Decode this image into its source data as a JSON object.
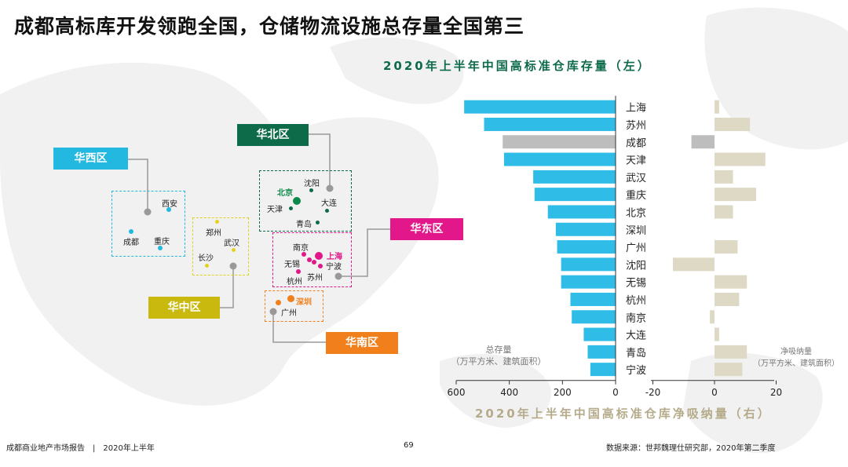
{
  "title": "成都高标库开发领跑全国，仓储物流设施总存量全国第三",
  "chart_titles": {
    "left": "2020年上半年中国高标准仓库存量（左）",
    "right": "2020年上半年中国高标准仓库净吸纳量（右）"
  },
  "regions": {
    "west": {
      "label": "华西区",
      "cities": [
        "西安",
        "成都",
        "重庆"
      ],
      "color": "#22b8e0"
    },
    "north": {
      "label": "华北区",
      "cities": [
        "沈阳",
        "北京",
        "天津",
        "大连",
        "青岛"
      ],
      "color": "#0d6b4a",
      "highlight": "北京"
    },
    "central": {
      "label": "华中区",
      "cities": [
        "郑州",
        "武汉",
        "长沙"
      ],
      "color": "#c9b90f"
    },
    "east": {
      "label": "华东区",
      "cities": [
        "南京",
        "无锡",
        "上海",
        "宁波",
        "苏州",
        "杭州"
      ],
      "color": "#e2188a",
      "highlight": "上海"
    },
    "south": {
      "label": "华南区",
      "cities": [
        "深圳",
        "广州"
      ],
      "color": "#f07f1c",
      "highlight": "深圳"
    }
  },
  "axis_notes": {
    "left": [
      "总存量",
      "（万平方米、建筑面积）"
    ],
    "right": [
      "净吸纳量",
      "（万平方米、建筑面积）"
    ]
  },
  "chart_data": {
    "type": "bar",
    "orientation": "horizontal",
    "categories": [
      "上海",
      "苏州",
      "成都",
      "天津",
      "武汉",
      "重庆",
      "北京",
      "深圳",
      "广州",
      "沈阳",
      "无锡",
      "杭州",
      "南京",
      "大连",
      "青岛",
      "宁波"
    ],
    "series": [
      {
        "name": "总存量",
        "side": "left",
        "xlim": [
          0,
          600
        ],
        "ticks": [
          600,
          400,
          200,
          0
        ],
        "values": [
          570,
          495,
          425,
          420,
          310,
          305,
          255,
          225,
          220,
          205,
          205,
          170,
          165,
          120,
          105,
          95
        ],
        "color": "#2fbde7",
        "highlight": {
          "category": "成都",
          "color": "#bdbdbd"
        }
      },
      {
        "name": "净吸纳量",
        "side": "right",
        "xlim": [
          -20,
          20
        ],
        "ticks": [
          -20,
          0,
          20
        ],
        "values": [
          1.5,
          11.5,
          -7.5,
          16.5,
          6,
          13.5,
          6,
          0,
          7.5,
          -13.5,
          10.5,
          8,
          -1.5,
          1.5,
          10.5,
          9
        ],
        "color": "#ddd9c4",
        "highlight": {
          "category": "成都",
          "color": "#bdbdbd"
        }
      }
    ]
  },
  "footer": {
    "report": "成都商业地产市场报告　|　2020年上半年",
    "page": "69",
    "source": "数据来源：世邦魏理仕研究部，2020年第二季度"
  }
}
